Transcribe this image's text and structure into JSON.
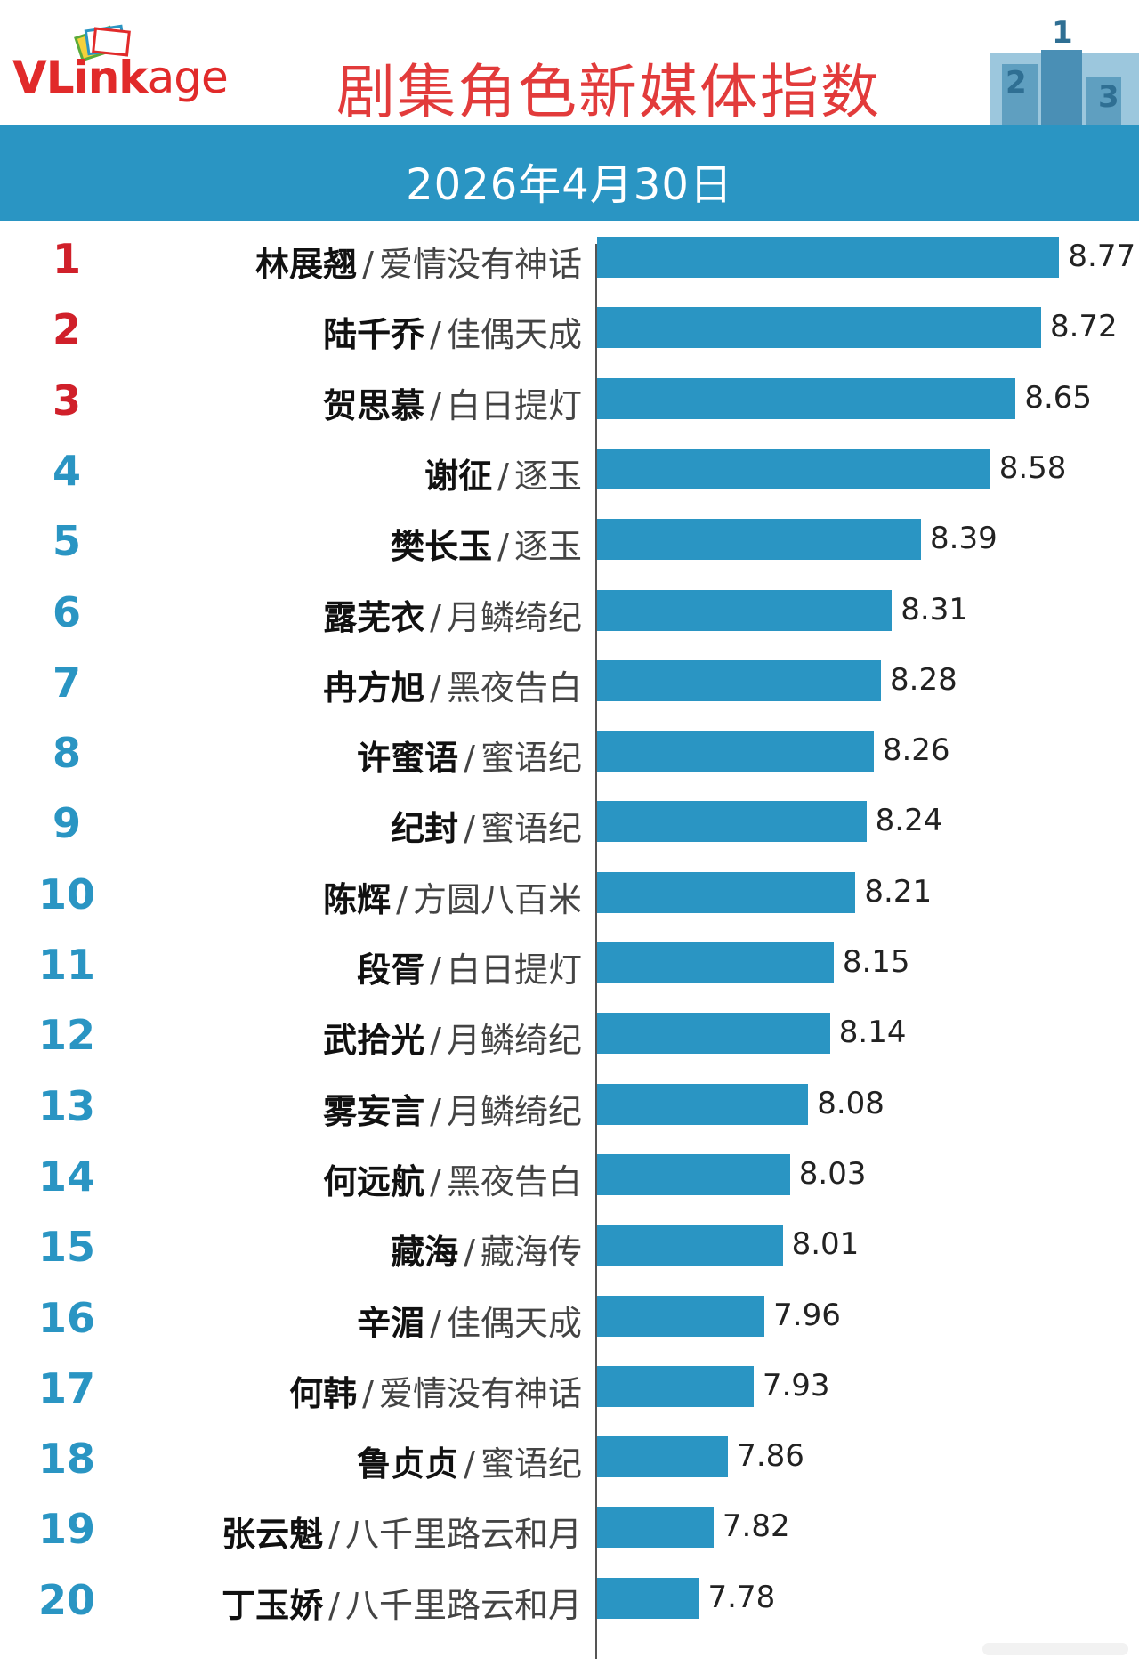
{
  "header": {
    "logo_text": {
      "v": "VL",
      "link": "ink",
      "age": "age"
    },
    "title": "剧集角色新媒体指数",
    "date": "2026年4月30日",
    "podium_icon": "podium-icon"
  },
  "colors": {
    "accent": "#2a95c3",
    "title_red": "#e23b3b",
    "top_rank_red": "#d0202a",
    "rank_blue": "#2a95c3"
  },
  "chart_data": {
    "type": "bar",
    "orientation": "horizontal",
    "xlim": [
      7.5,
      9.0
    ],
    "grid": false,
    "legend": "none",
    "rows": [
      {
        "rank": "1",
        "name": "林展翘",
        "drama": "爱情没有神话",
        "value": 8.77
      },
      {
        "rank": "2",
        "name": "陆千乔",
        "drama": "佳偶天成",
        "value": 8.72
      },
      {
        "rank": "3",
        "name": "贺思慕",
        "drama": "白日提灯",
        "value": 8.65
      },
      {
        "rank": "4",
        "name": "谢征",
        "drama": "逐玉",
        "value": 8.58
      },
      {
        "rank": "5",
        "name": "樊长玉",
        "drama": "逐玉",
        "value": 8.39
      },
      {
        "rank": "6",
        "name": "露芜衣",
        "drama": "月鳞绮纪",
        "value": 8.31
      },
      {
        "rank": "7",
        "name": "冉方旭",
        "drama": "黑夜告白",
        "value": 8.28
      },
      {
        "rank": "8",
        "name": "许蜜语",
        "drama": "蜜语纪",
        "value": 8.26
      },
      {
        "rank": "9",
        "name": "纪封",
        "drama": "蜜语纪",
        "value": 8.24
      },
      {
        "rank": "10",
        "name": "陈辉",
        "drama": "方圆八百米",
        "value": 8.21
      },
      {
        "rank": "11",
        "name": "段胥",
        "drama": "白日提灯",
        "value": 8.15
      },
      {
        "rank": "12",
        "name": "武拾光",
        "drama": "月鳞绮纪",
        "value": 8.14
      },
      {
        "rank": "13",
        "name": "雾妄言",
        "drama": "月鳞绮纪",
        "value": 8.08
      },
      {
        "rank": "14",
        "name": "何远航",
        "drama": "黑夜告白",
        "value": 8.03
      },
      {
        "rank": "15",
        "name": "藏海",
        "drama": "藏海传",
        "value": 8.01
      },
      {
        "rank": "16",
        "name": "辛湄",
        "drama": "佳偶天成",
        "value": 7.96
      },
      {
        "rank": "17",
        "name": "何韩",
        "drama": "爱情没有神话",
        "value": 7.93
      },
      {
        "rank": "18",
        "name": "鲁贞贞",
        "drama": "蜜语纪",
        "value": 7.86
      },
      {
        "rank": "19",
        "name": "张云魁",
        "drama": "八千里路云和月",
        "value": 7.82
      },
      {
        "rank": "20",
        "name": "丁玉娇",
        "drama": "八千里路云和月",
        "value": 7.78
      }
    ]
  }
}
